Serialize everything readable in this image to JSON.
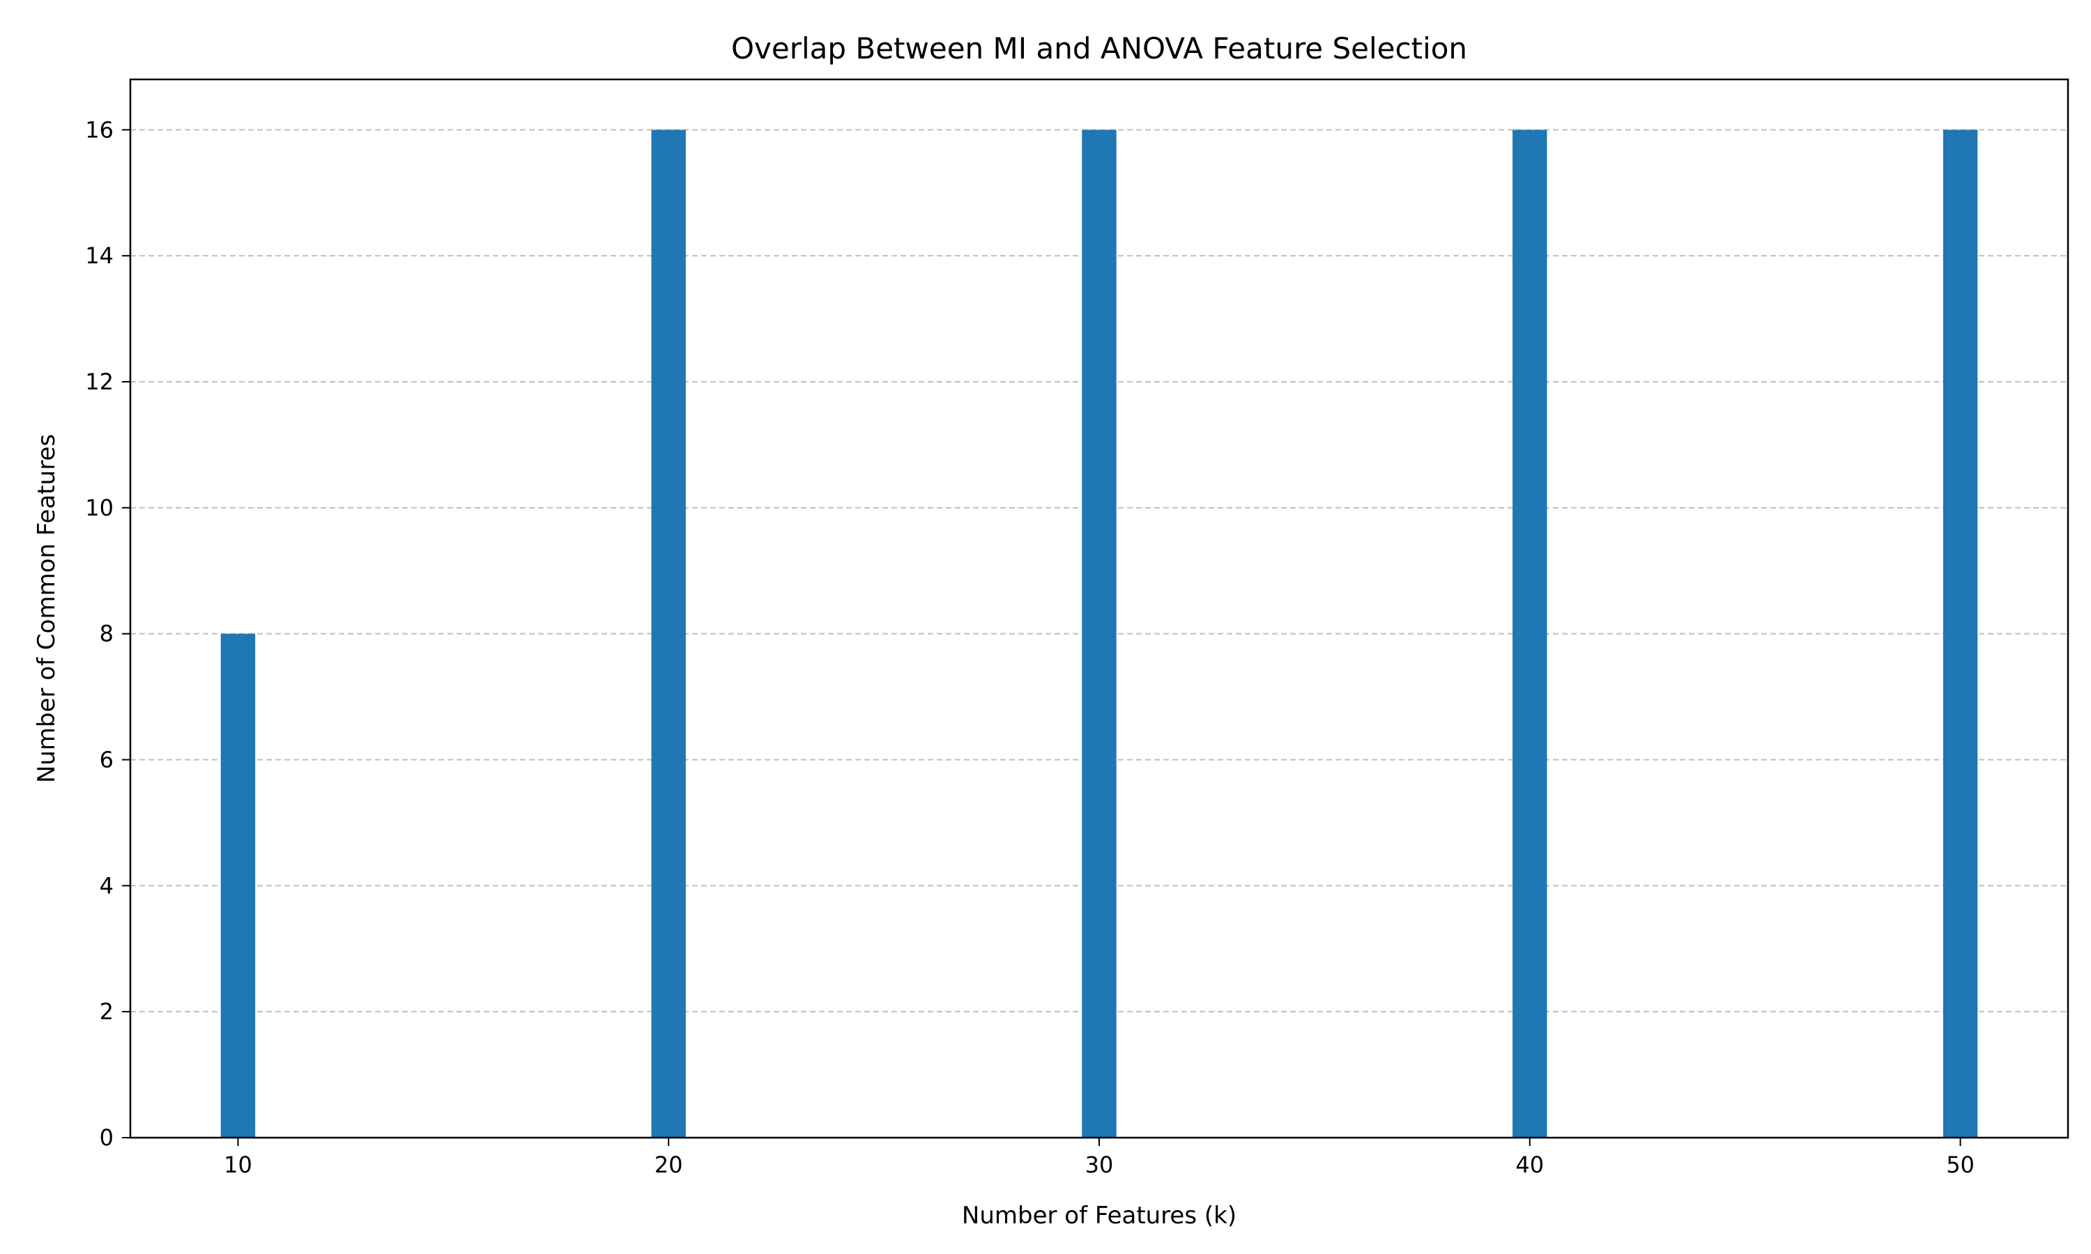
{
  "chart_data": {
    "type": "bar",
    "title": "Overlap Between MI and ANOVA Feature Selection",
    "xlabel": "Number of Features (k)",
    "ylabel": "Number of Common Features",
    "x": [
      10,
      20,
      30,
      40,
      50
    ],
    "values": [
      8,
      16,
      16,
      16,
      16
    ],
    "xlim": [
      7.5,
      52.5
    ],
    "ylim": [
      0,
      16.8
    ],
    "xticks": [
      10,
      20,
      30,
      40,
      50
    ],
    "yticks": [
      0,
      2,
      4,
      6,
      8,
      10,
      12,
      14,
      16
    ],
    "bar_width": 0.8,
    "grid": "y, dashed",
    "bar_color": "#1f77b4",
    "grid_color": "#b0b0b0"
  }
}
